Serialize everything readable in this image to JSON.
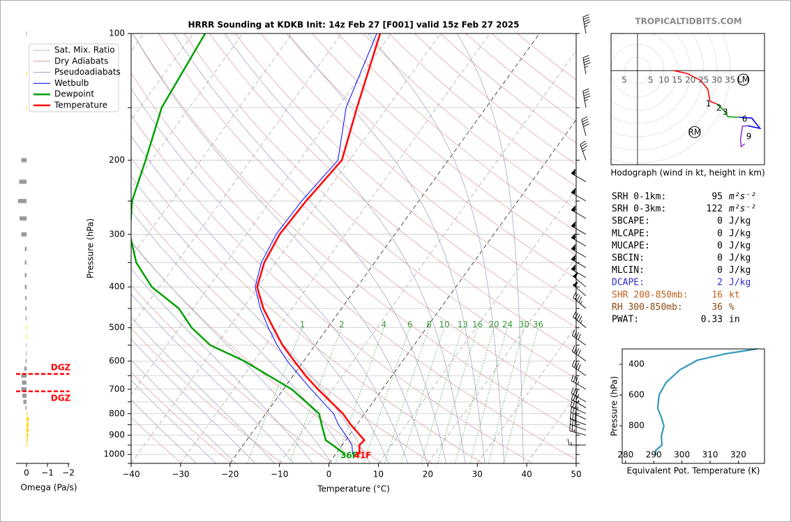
{
  "watermark": "TROPICALTIDBITS.COM",
  "chart_data": [
    {
      "type": "skewt",
      "title": "HRRR Sounding at KDKB Init: 14z Feb 27 [F001] valid 15z Feb 27 2025",
      "xlabel": "Temperature (°C)",
      "ylabel": "Pressure (hPa)",
      "xlim": [
        -40,
        50
      ],
      "ylim": [
        1050,
        100
      ],
      "log_y": true,
      "grid": true,
      "xticks": [
        {
          "value": -40,
          "label": "−40"
        },
        {
          "value": -30,
          "label": "−30"
        },
        {
          "value": -20,
          "label": "−20"
        },
        {
          "value": -10,
          "label": "−10"
        },
        0,
        10,
        20,
        30,
        40,
        50
      ],
      "yticks": [
        100,
        200,
        300,
        400,
        500,
        600,
        700,
        800,
        900,
        1000
      ],
      "yminor": [
        150,
        250,
        350,
        450,
        550,
        650,
        750,
        850,
        950,
        1050
      ],
      "pressure": [
        1000,
        950,
        925,
        850,
        800,
        700,
        650,
        600,
        550,
        500,
        450,
        400,
        350,
        300,
        250,
        200,
        150,
        100
      ],
      "series": [
        {
          "name": "Wetbulb",
          "color": "#0000ff",
          "width": 1,
          "values": [
            3.5,
            2,
            0.7,
            -3.7,
            -6.3,
            -14.4,
            -18.7,
            -23.3,
            -27.7,
            -32,
            -36.4,
            -40.6,
            -42.9,
            -44,
            -43.7,
            -42.3,
            -48.3,
            -52.9
          ]
        },
        {
          "name": "Dewpoint",
          "color": "#00a000",
          "width": 2.5,
          "values": [
            2,
            -1.9,
            -4,
            -7.1,
            -9.2,
            -18.3,
            -24.9,
            -32,
            -41.2,
            -47.5,
            -52.9,
            -61.5,
            -68.2,
            -73.6,
            -78,
            -81.2,
            -85.6,
            -87.6
          ]
        },
        {
          "name": "Temperature",
          "color": "#ff0000",
          "width": 2.5,
          "values": [
            4.9,
            3.5,
            3.8,
            -1.2,
            -4.4,
            -13,
            -17.5,
            -21.9,
            -26.6,
            -31,
            -35.8,
            -40.2,
            -42.3,
            -43.3,
            -42.8,
            -41.5,
            -46.1,
            -52.2
          ]
        }
      ],
      "background_lines": [
        {
          "name": "Sat. Mix. Ratio",
          "color": "#3a9a3a"
        },
        {
          "name": "Dry Adiabats",
          "color": "#d89a9a"
        },
        {
          "name": "Pseudoadiabats",
          "color": "#9a9ac0"
        }
      ],
      "mixing_ratio_labels": [
        1,
        2,
        4,
        6,
        8,
        10,
        13,
        16,
        20,
        24,
        30,
        36
      ],
      "surface_labels": [
        {
          "text": "36F",
          "color": "#00a000"
        },
        {
          "text": "41F",
          "color": "#ff0000"
        }
      ],
      "wind": {
        "pressure": [
          950,
          900,
          875,
          850,
          825,
          800,
          775,
          750,
          700,
          650,
          600,
          550,
          500,
          450,
          420,
          400,
          380,
          360,
          340,
          320,
          300,
          275,
          250,
          225,
          200,
          175,
          150,
          125,
          100
        ],
        "speed": [
          14,
          25,
          28,
          30,
          32,
          33,
          34,
          35,
          36,
          38,
          40,
          42,
          45,
          47,
          48,
          50,
          55,
          55,
          55,
          55,
          55,
          55,
          55,
          55,
          35,
          40,
          45,
          45,
          45
        ],
        "direction": [
          270,
          285,
          290,
          290,
          295,
          295,
          300,
          300,
          300,
          305,
          305,
          305,
          310,
          310,
          310,
          310,
          300,
          300,
          300,
          300,
          300,
          300,
          300,
          300,
          340,
          345,
          350,
          350,
          350
        ]
      }
    },
    {
      "type": "omega",
      "xlabel": "Omega (Pa/s)",
      "xlim": [
        0.5,
        -2.05
      ],
      "xticks": [
        0,
        {
          "value": -1,
          "label": "−1"
        },
        {
          "value": -2,
          "label": "−2"
        }
      ],
      "pressure": [
        100,
        125,
        150,
        200,
        225,
        250,
        275,
        300,
        325,
        350,
        375,
        400,
        425,
        450,
        475,
        500,
        525,
        550,
        575,
        600,
        625,
        650,
        675,
        700,
        725,
        750,
        775,
        800,
        825,
        850,
        875,
        900,
        925,
        950
      ],
      "values": [
        0.02,
        -0.03,
        -0.03,
        0.25,
        0.35,
        0.4,
        0.33,
        0.25,
        0.08,
        0.08,
        0.08,
        0.08,
        0.06,
        0.06,
        0.04,
        -0.03,
        -0.02,
        0.02,
        0.02,
        0.04,
        0.1,
        0.25,
        0.22,
        0.25,
        0.2,
        0.15,
        0.05,
        -0.03,
        -0.1,
        -0.1,
        -0.1,
        -0.08,
        -0.05,
        -0.03
      ],
      "colors": [
        "#999999",
        "#ffd700",
        "#ffd700",
        "#999999",
        "#999999",
        "#999999",
        "#999999",
        "#999999",
        "#999999",
        "#999999",
        "#999999",
        "#999999",
        "#999999",
        "#999999",
        "#999999",
        "#ffd700",
        "#ffd700",
        "#999999",
        "#999999",
        "#999999",
        "#999999",
        "#999999",
        "#999999",
        "#999999",
        "#999999",
        "#999999",
        "#999999",
        "#ffd700",
        "#ffd700",
        "#ffd700",
        "#ffd700",
        "#ffd700",
        "#ffd700",
        "#ffd700"
      ],
      "dgz": {
        "label": "DGZ",
        "pressure": [
          644,
          708
        ],
        "color": "#ff0000"
      }
    },
    {
      "type": "hodograph",
      "caption": "Hodograph (wind in kt, height in km)",
      "xlim": [
        -10,
        48
      ],
      "ylim": [
        -35.5,
        14
      ],
      "rings": [
        5,
        10,
        15,
        20,
        25,
        30,
        35
      ],
      "segments": [
        {
          "color": "#ff0000",
          "u": [
            13.7,
            18.7,
            23.9,
            26.6,
            27.4,
            30
          ],
          "v": [
            0,
            -1.05,
            -3.7,
            -7.1,
            -11.6,
            -12.6
          ]
        },
        {
          "color": "#00a000",
          "u": [
            30,
            32.6,
            34.2,
            38.4
          ],
          "v": [
            -12.6,
            -15,
            -17.4,
            -17.6
          ]
        },
        {
          "color": "#0000ff",
          "u": [
            38.4,
            43.2,
            46.3,
            41.6
          ],
          "v": [
            -17.6,
            -17.9,
            -21.8,
            -20.8
          ]
        },
        {
          "color": "#9933cc",
          "u": [
            41.6,
            39.7,
            38.9,
            39.2,
            40.5
          ],
          "v": [
            -20.8,
            -21,
            -26.1,
            -28.7,
            -27.6
          ]
        }
      ],
      "height_labels": {
        "labels": [
          1,
          2,
          3,
          6,
          9
        ],
        "u": [
          26.8,
          30.8,
          33.2,
          40.5,
          42.1
        ],
        "v": [
          -12.6,
          -14.2,
          -15.8,
          -18.4,
          -25
        ]
      },
      "storm_motion": [
        {
          "label": "RM",
          "u": 21.6,
          "v": -23.2
        },
        {
          "label": "LM",
          "u": 40,
          "v": -3.4
        }
      ]
    },
    {
      "type": "line",
      "xlabel": "Equivalent Pot. Temperature (K)",
      "ylabel": "Pressure (hPa)",
      "xlim": [
        278.8,
        329.3
      ],
      "ylim": [
        1045,
        300
      ],
      "xticks": [
        280,
        290,
        300,
        310,
        320
      ],
      "yticks": [
        400,
        600,
        800
      ],
      "color": "#3399bb",
      "values": [
        326.6,
        315.4,
        305.5,
        299.3,
        294.4,
        291.9,
        291.4,
        292.7,
        293.6,
        292.7,
        292.9,
        290.7,
        290.7
      ],
      "pressure": [
        300,
        332,
        373,
        436,
        518,
        600,
        686,
        745,
        800,
        868,
        927,
        959,
        991
      ]
    }
  ],
  "indices": {
    "rows": [
      {
        "label": "SRH 0-1km:",
        "value": 95,
        "unit": "m²s⁻²",
        "color": "#000000"
      },
      {
        "label": "SRH 0-3km:",
        "value": 122,
        "unit": "m²s⁻²",
        "color": "#000000"
      },
      {
        "label": "SBCAPE:",
        "value": 0,
        "unit": "J/kg",
        "color": "#000000"
      },
      {
        "label": "MLCAPE:",
        "value": 0,
        "unit": "J/kg",
        "color": "#000000"
      },
      {
        "label": "MUCAPE:",
        "value": 0,
        "unit": "J/kg",
        "color": "#000000"
      },
      {
        "label": "SBCIN:",
        "value": 0,
        "unit": "J/kg",
        "color": "#000000"
      },
      {
        "label": "MLCIN:",
        "value": 0,
        "unit": "J/kg",
        "color": "#000000"
      },
      {
        "label": "DCAPE:",
        "value": 2,
        "unit": "J/kg",
        "color": "#2b2bd0"
      },
      {
        "label": "SHR 200-850mb:",
        "value": 16,
        "unit": "kt",
        "color": "#c0601c"
      },
      {
        "label": "RH 300-850mb:",
        "value": 36,
        "unit": "%",
        "color": "#8b4a10"
      },
      {
        "label": "PWAT:",
        "value": 0.33,
        "unit": "in",
        "color": "#000000"
      }
    ]
  }
}
